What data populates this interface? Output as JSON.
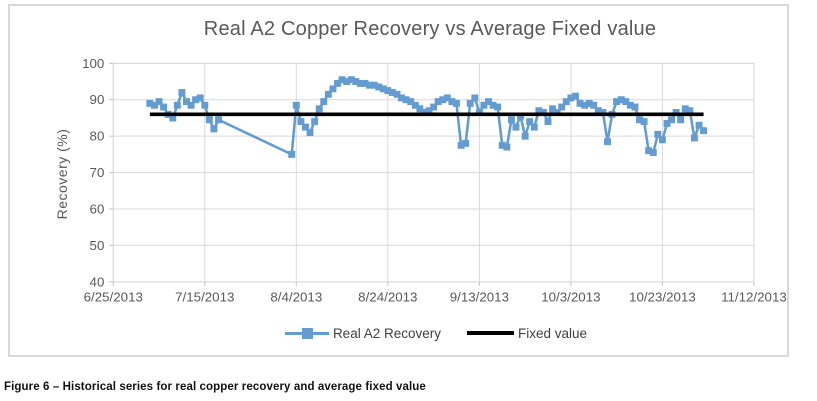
{
  "figure": {
    "caption": "Figure 6 – Historical series for real copper recovery and average fixed value"
  },
  "chart_data": {
    "type": "line",
    "title": "Real A2 Copper Recovery vs Average Fixed value",
    "xlabel": "",
    "ylabel": "Recovery (%)",
    "ylim": [
      40,
      100
    ],
    "yticks": [
      40,
      50,
      60,
      70,
      80,
      90,
      100
    ],
    "xticks": [
      "6/25/2013",
      "7/15/2013",
      "8/4/2013",
      "8/24/2013",
      "9/13/2013",
      "10/3/2013",
      "10/23/2013",
      "11/12/2013"
    ],
    "x_start": "6/25/2013",
    "x_end": "11/12/2013",
    "grid": true,
    "legend_position": "bottom",
    "colors": {
      "series_blue": "#649CD2",
      "fixed_black": "#000000",
      "grid_gray": "#d9d9d9",
      "tick_gray": "#bfbfbf",
      "text_gray": "#595959"
    },
    "series": [
      {
        "name": "Real A2 Recovery",
        "style": "line-with-square-markers",
        "color": "#649CD2",
        "points": [
          [
            "7/3/2013",
            89
          ],
          [
            "7/4/2013",
            88.5
          ],
          [
            "7/5/2013",
            89.5
          ],
          [
            "7/6/2013",
            88
          ],
          [
            "7/7/2013",
            86
          ],
          [
            "7/8/2013",
            85
          ],
          [
            "7/9/2013",
            88.5
          ],
          [
            "7/10/2013",
            92
          ],
          [
            "7/11/2013",
            89.5
          ],
          [
            "7/12/2013",
            88.5
          ],
          [
            "7/13/2013",
            90
          ],
          [
            "7/14/2013",
            90.5
          ],
          [
            "7/15/2013",
            88.5
          ],
          [
            "7/16/2013",
            84.5
          ],
          [
            "7/17/2013",
            82
          ],
          [
            "7/18/2013",
            84.5
          ],
          [
            "8/3/2013",
            75
          ],
          [
            "8/4/2013",
            88.5
          ],
          [
            "8/5/2013",
            84
          ],
          [
            "8/6/2013",
            82.5
          ],
          [
            "8/7/2013",
            81
          ],
          [
            "8/8/2013",
            84
          ],
          [
            "8/9/2013",
            87.5
          ],
          [
            "8/10/2013",
            89.5
          ],
          [
            "8/11/2013",
            91.5
          ],
          [
            "8/12/2013",
            93
          ],
          [
            "8/13/2013",
            94.5
          ],
          [
            "8/14/2013",
            95.5
          ],
          [
            "8/15/2013",
            95
          ],
          [
            "8/16/2013",
            95.5
          ],
          [
            "8/17/2013",
            95
          ],
          [
            "8/18/2013",
            94.5
          ],
          [
            "8/19/2013",
            94.5
          ],
          [
            "8/20/2013",
            94
          ],
          [
            "8/21/2013",
            94
          ],
          [
            "8/22/2013",
            93.5
          ],
          [
            "8/23/2013",
            93
          ],
          [
            "8/24/2013",
            92.5
          ],
          [
            "8/25/2013",
            92
          ],
          [
            "8/26/2013",
            91.5
          ],
          [
            "8/27/2013",
            90.5
          ],
          [
            "8/28/2013",
            90
          ],
          [
            "8/29/2013",
            89.5
          ],
          [
            "8/30/2013",
            88.5
          ],
          [
            "8/31/2013",
            87.5
          ],
          [
            "9/1/2013",
            86.5
          ],
          [
            "9/2/2013",
            87
          ],
          [
            "9/3/2013",
            88
          ],
          [
            "9/4/2013",
            89.5
          ],
          [
            "9/5/2013",
            90
          ],
          [
            "9/6/2013",
            90.5
          ],
          [
            "9/7/2013",
            89.5
          ],
          [
            "9/8/2013",
            89
          ],
          [
            "9/9/2013",
            77.5
          ],
          [
            "9/10/2013",
            78
          ],
          [
            "9/11/2013",
            89
          ],
          [
            "9/12/2013",
            90.5
          ],
          [
            "9/13/2013",
            86.5
          ],
          [
            "9/14/2013",
            88.5
          ],
          [
            "9/15/2013",
            89.5
          ],
          [
            "9/16/2013",
            88.5
          ],
          [
            "9/17/2013",
            88
          ],
          [
            "9/18/2013",
            77.5
          ],
          [
            "9/19/2013",
            77
          ],
          [
            "9/20/2013",
            84.5
          ],
          [
            "9/21/2013",
            82.5
          ],
          [
            "9/22/2013",
            85.5
          ],
          [
            "9/23/2013",
            80
          ],
          [
            "9/24/2013",
            84
          ],
          [
            "9/25/2013",
            82.5
          ],
          [
            "9/26/2013",
            87
          ],
          [
            "9/27/2013",
            86.5
          ],
          [
            "9/28/2013",
            84
          ],
          [
            "9/29/2013",
            87.5
          ],
          [
            "9/30/2013",
            86.5
          ],
          [
            "10/1/2013",
            88
          ],
          [
            "10/2/2013",
            89.5
          ],
          [
            "10/3/2013",
            90.5
          ],
          [
            "10/4/2013",
            91
          ],
          [
            "10/5/2013",
            89
          ],
          [
            "10/6/2013",
            88.5
          ],
          [
            "10/7/2013",
            89
          ],
          [
            "10/8/2013",
            88.5
          ],
          [
            "10/9/2013",
            87
          ],
          [
            "10/10/2013",
            86.5
          ],
          [
            "10/11/2013",
            78.5
          ],
          [
            "10/12/2013",
            86
          ],
          [
            "10/13/2013",
            89.5
          ],
          [
            "10/14/2013",
            90
          ],
          [
            "10/15/2013",
            89.5
          ],
          [
            "10/16/2013",
            88.5
          ],
          [
            "10/17/2013",
            88
          ],
          [
            "10/18/2013",
            84.5
          ],
          [
            "10/19/2013",
            84
          ],
          [
            "10/20/2013",
            76
          ],
          [
            "10/21/2013",
            75.5
          ],
          [
            "10/22/2013",
            80.5
          ],
          [
            "10/23/2013",
            79
          ],
          [
            "10/24/2013",
            83.5
          ],
          [
            "10/25/2013",
            84.5
          ],
          [
            "10/26/2013",
            86.5
          ],
          [
            "10/27/2013",
            84.5
          ],
          [
            "10/28/2013",
            87.5
          ],
          [
            "10/29/2013",
            87
          ],
          [
            "10/30/2013",
            79.5
          ],
          [
            "10/31/2013",
            83
          ],
          [
            "11/1/2013",
            81.5
          ]
        ]
      },
      {
        "name": "Fixed value",
        "style": "horizontal-line",
        "color": "#000000",
        "value": 86,
        "from": "7/3/2013",
        "to": "11/1/2013"
      }
    ]
  }
}
